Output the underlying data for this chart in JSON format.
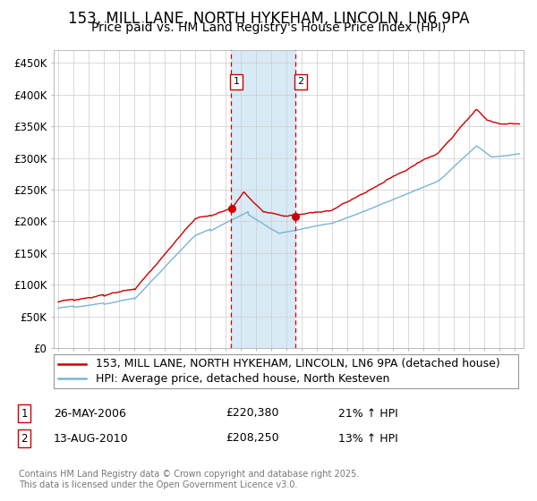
{
  "title": "153, MILL LANE, NORTH HYKEHAM, LINCOLN, LN6 9PA",
  "subtitle": "Price paid vs. HM Land Registry's House Price Index (HPI)",
  "ylabel_ticks": [
    "£0",
    "£50K",
    "£100K",
    "£150K",
    "£200K",
    "£250K",
    "£300K",
    "£350K",
    "£400K",
    "£450K"
  ],
  "ytick_vals": [
    0,
    50000,
    100000,
    150000,
    200000,
    250000,
    300000,
    350000,
    400000,
    450000
  ],
  "ylim": [
    0,
    470000
  ],
  "xlim_start": 1994.7,
  "xlim_end": 2025.6,
  "vline1_x": 2006.38,
  "vline2_x": 2010.62,
  "vline1_label": "1",
  "vline2_label": "2",
  "sale1_date": "26-MAY-2006",
  "sale1_price": "£220,380",
  "sale1_hpi": "21% ↑ HPI",
  "sale2_date": "13-AUG-2010",
  "sale2_price": "£208,250",
  "sale2_hpi": "13% ↑ HPI",
  "legend_property": "153, MILL LANE, NORTH HYKEHAM, LINCOLN, LN6 9PA (detached house)",
  "legend_hpi": "HPI: Average price, detached house, North Kesteven",
  "line_property_color": "#cc0000",
  "line_hpi_color": "#7ab4d8",
  "shading_color": "#d8eaf5",
  "vline_color": "#cc0000",
  "grid_color": "#cccccc",
  "footer": "Contains HM Land Registry data © Crown copyright and database right 2025.\nThis data is licensed under the Open Government Licence v3.0.",
  "title_fontsize": 12,
  "subtitle_fontsize": 10,
  "tick_fontsize": 8.5,
  "legend_fontsize": 9,
  "footer_fontsize": 7
}
